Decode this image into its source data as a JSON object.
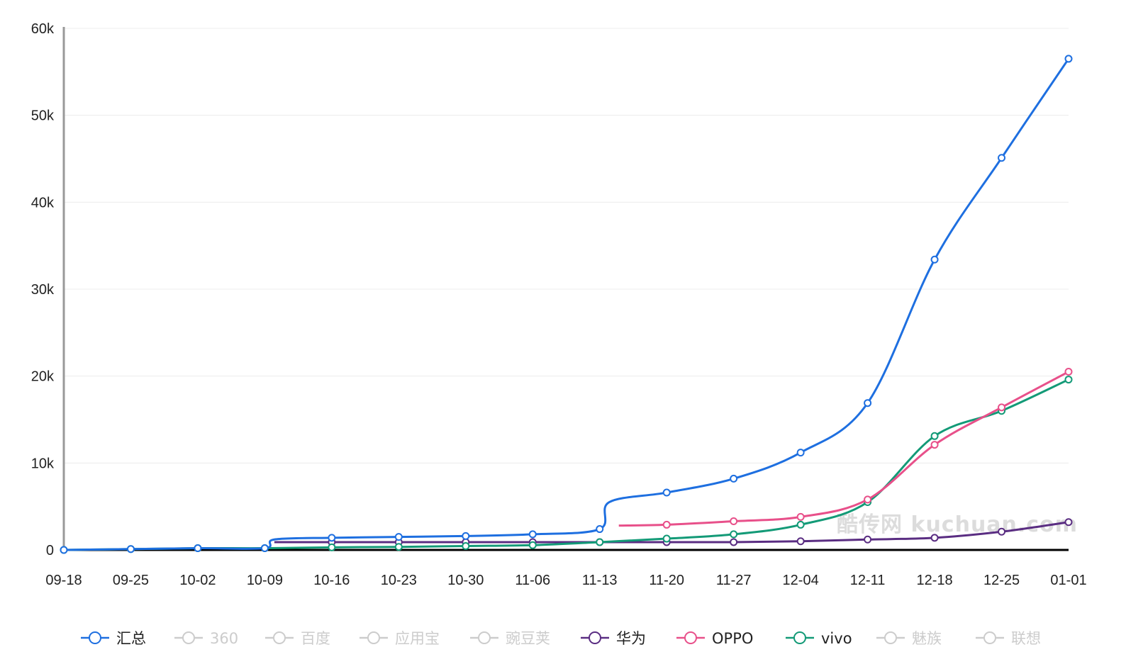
{
  "chart_data": {
    "type": "line",
    "title": "",
    "xlabel": "",
    "ylabel": "",
    "ylim": [
      0,
      60000
    ],
    "x_dates": [
      "09-18",
      "09-25",
      "10-02",
      "10-09",
      "10-16",
      "10-23",
      "10-30",
      "11-06",
      "11-13",
      "11-20",
      "11-27",
      "12-04",
      "12-11",
      "12-18",
      "12-25",
      "01-01"
    ],
    "x_ticks": [
      "09-18",
      "09-25",
      "10-02",
      "10-09",
      "10-16",
      "10-23",
      "10-30",
      "11-06",
      "11-13",
      "11-20",
      "11-27",
      "12-04",
      "12-11",
      "12-18",
      "12-25",
      "01-01"
    ],
    "y_ticks": [
      "0",
      "10k",
      "20k",
      "30k",
      "40k",
      "50k",
      "60k"
    ],
    "y_tick_values": [
      0,
      10000,
      20000,
      30000,
      40000,
      50000,
      60000
    ],
    "grid": true,
    "legend_position": "bottom",
    "series": [
      {
        "name": "汇总",
        "color": "#1e6fe0",
        "visible": true,
        "x": [
          "09-18",
          "09-25",
          "10-02",
          "10-09",
          "10-10",
          "10-16",
          "10-23",
          "10-30",
          "11-06",
          "11-13",
          "11-14",
          "11-20",
          "11-27",
          "12-04",
          "12-11",
          "12-18",
          "12-25",
          "01-01"
        ],
        "values": [
          0,
          100,
          200,
          200,
          1200,
          1400,
          1500,
          1600,
          1800,
          2400,
          5500,
          6600,
          8200,
          11200,
          16900,
          33400,
          45100,
          56500
        ]
      },
      {
        "name": "360",
        "color": "#cccccc",
        "visible": false,
        "x": [],
        "values": []
      },
      {
        "name": "百度",
        "color": "#cccccc",
        "visible": false,
        "x": [],
        "values": []
      },
      {
        "name": "应用宝",
        "color": "#cccccc",
        "visible": false,
        "x": [],
        "values": []
      },
      {
        "name": "豌豆荚",
        "color": "#cccccc",
        "visible": false,
        "x": [],
        "values": []
      },
      {
        "name": "华为",
        "color": "#5a2d82",
        "visible": true,
        "x": [
          "10-10",
          "10-16",
          "10-23",
          "10-30",
          "11-06",
          "11-13",
          "11-20",
          "11-27",
          "12-04",
          "12-11",
          "12-18",
          "12-25",
          "01-01"
        ],
        "values": [
          900,
          900,
          900,
          900,
          900,
          900,
          900,
          900,
          1000,
          1200,
          1400,
          2100,
          3200
        ]
      },
      {
        "name": "OPPO",
        "color": "#e8508a",
        "visible": true,
        "x": [
          "11-15",
          "11-20",
          "11-27",
          "12-04",
          "12-11",
          "12-18",
          "12-25",
          "01-01"
        ],
        "values": [
          2800,
          2900,
          3300,
          3800,
          5800,
          12100,
          16400,
          20500
        ]
      },
      {
        "name": "vivo",
        "color": "#139a77",
        "visible": true,
        "x": [
          "09-18",
          "09-25",
          "10-02",
          "10-09",
          "10-16",
          "10-23",
          "10-30",
          "11-06",
          "11-13",
          "11-20",
          "11-27",
          "12-04",
          "12-11",
          "12-18",
          "12-25",
          "01-01"
        ],
        "values": [
          0,
          100,
          200,
          200,
          300,
          350,
          450,
          550,
          900,
          1300,
          1800,
          2900,
          5500,
          13100,
          16000,
          19600
        ]
      },
      {
        "name": "魅族",
        "color": "#cccccc",
        "visible": false,
        "x": [],
        "values": []
      },
      {
        "name": "联想",
        "color": "#cccccc",
        "visible": false,
        "x": [],
        "values": []
      }
    ],
    "watermark": "酷传网 kuchuan.com"
  }
}
